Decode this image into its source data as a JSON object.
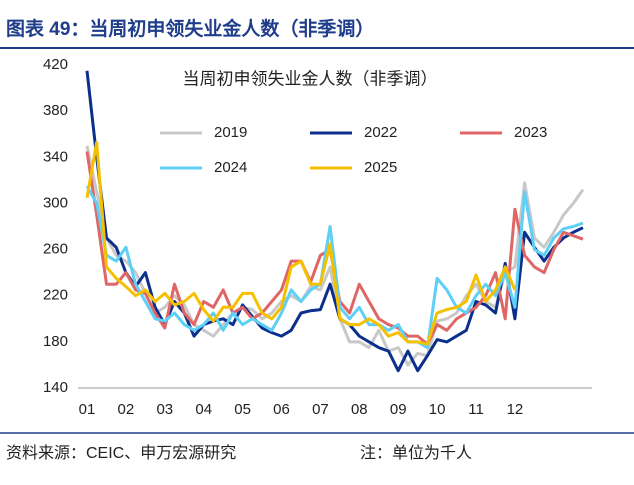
{
  "header": {
    "title": "图表 49：当周初申领失业金人数（非季调）"
  },
  "chart_data": {
    "type": "line",
    "title": "当周初申领失业金人数（非季调）",
    "categories": [
      "01",
      null,
      null,
      null,
      "02",
      null,
      null,
      null,
      "03",
      null,
      null,
      null,
      "04",
      null,
      null,
      null,
      "05",
      null,
      null,
      null,
      "06",
      null,
      null,
      null,
      "07",
      null,
      null,
      null,
      "08",
      null,
      null,
      null,
      "09",
      null,
      null,
      null,
      "10",
      null,
      null,
      null,
      "11",
      null,
      null,
      null,
      "12",
      null,
      null,
      null,
      null,
      null,
      null,
      null
    ],
    "series": [
      {
        "name": "2019",
        "color": "#c8c8c8",
        "values": [
          350,
          310,
          270,
          255,
          250,
          240,
          222,
          205,
          210,
          220,
          212,
          195,
          190,
          185,
          195,
          205,
          210,
          208,
          200,
          205,
          215,
          220,
          215,
          228,
          225,
          245,
          200,
          180,
          180,
          175,
          190,
          172,
          175,
          160,
          170,
          168,
          198,
          200,
          205,
          220,
          230,
          215,
          210,
          240,
          245,
          318,
          270,
          262,
          275,
          290,
          300,
          312
        ]
      },
      {
        "name": "2022",
        "color": "#0d2f8c",
        "values": [
          415,
          340,
          270,
          262,
          240,
          228,
          240,
          210,
          195,
          215,
          205,
          185,
          195,
          198,
          200,
          195,
          212,
          202,
          192,
          188,
          185,
          190,
          205,
          207,
          208,
          230,
          200,
          195,
          185,
          180,
          175,
          172,
          155,
          172,
          155,
          168,
          182,
          180,
          185,
          190,
          215,
          212,
          205,
          248,
          200,
          275,
          262,
          250,
          262,
          270,
          275,
          279
        ]
      },
      {
        "name": "2023",
        "color": "#e06666",
        "values": [
          345,
          290,
          230,
          230,
          240,
          225,
          222,
          205,
          192,
          230,
          205,
          195,
          215,
          210,
          225,
          205,
          210,
          200,
          205,
          215,
          225,
          250,
          250,
          232,
          255,
          260,
          215,
          205,
          230,
          215,
          200,
          195,
          192,
          185,
          185,
          178,
          195,
          190,
          200,
          205,
          210,
          220,
          240,
          200,
          295,
          255,
          245,
          240,
          260,
          275,
          272,
          269
        ]
      },
      {
        "name": "2024",
        "color": "#5ecff5",
        "values": [
          315,
          300,
          255,
          250,
          262,
          230,
          215,
          200,
          198,
          205,
          195,
          190,
          195,
          205,
          190,
          205,
          195,
          200,
          195,
          190,
          205,
          225,
          215,
          225,
          230,
          280,
          210,
          200,
          210,
          195,
          195,
          190,
          195,
          180,
          180,
          175,
          235,
          225,
          210,
          205,
          220,
          230,
          220,
          240,
          210,
          310,
          260,
          255,
          270,
          278,
          280,
          283
        ]
      },
      {
        "name": "2025",
        "color": "#f5c000",
        "values": [
          305,
          353,
          245,
          235,
          228,
          220,
          225,
          215,
          222,
          212,
          215,
          222,
          208,
          198,
          210,
          210,
          222,
          222,
          205,
          200,
          210,
          245,
          250,
          230,
          230,
          265,
          200,
          195,
          195,
          200,
          195,
          185,
          188,
          180,
          180,
          178,
          205,
          208,
          210,
          215,
          238,
          215,
          225,
          245,
          225,
          null,
          null,
          null,
          null,
          null,
          null,
          null
        ]
      }
    ],
    "ylim": [
      140,
      420
    ],
    "yticks": [
      140,
      180,
      220,
      260,
      300,
      340,
      380,
      420
    ]
  },
  "footer": {
    "source": "资料来源：CEIC、申万宏源研究",
    "note": "注：单位为千人"
  }
}
